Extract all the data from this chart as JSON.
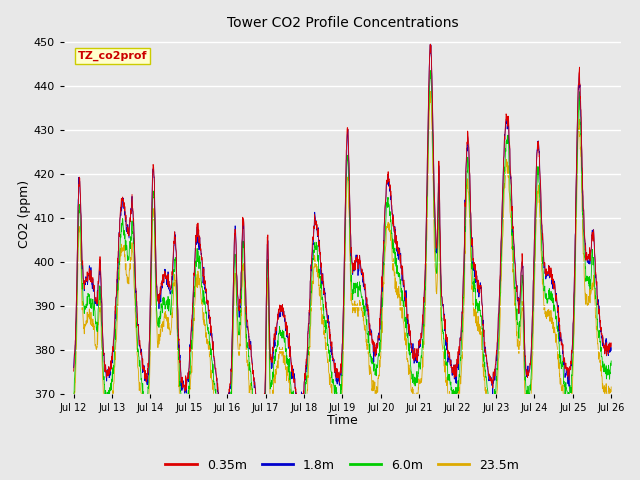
{
  "title": "Tower CO2 Profile Concentrations",
  "xlabel": "Time",
  "ylabel": "CO2 (ppm)",
  "ylim": [
    370,
    452
  ],
  "yticks": [
    370,
    380,
    390,
    400,
    410,
    420,
    430,
    440,
    450
  ],
  "annotation_text": "TZ_co2prof",
  "annotation_color": "#cc0000",
  "annotation_bg": "#ffffcc",
  "annotation_border": "#cccc00",
  "legend_entries": [
    "0.35m",
    "1.8m",
    "6.0m",
    "23.5m"
  ],
  "line_colors": [
    "#dd0000",
    "#0000cc",
    "#00cc00",
    "#ddaa00"
  ],
  "background_color": "#e8e8e8",
  "plot_bg": "#e8e8e8",
  "x_start_day": 11.75,
  "x_end_day": 26.25,
  "xtick_labels": [
    "Jul 12",
    "Jul 13",
    "Jul 14",
    "Jul 15",
    "Jul 16",
    "Jul 17",
    "Jul 18",
    "Jul 19",
    "Jul 20",
    "Jul 21",
    "Jul 22",
    "Jul 23",
    "Jul 24",
    "Jul 25",
    "Jul 26"
  ],
  "xtick_positions": [
    12,
    13,
    14,
    15,
    16,
    17,
    18,
    19,
    20,
    21,
    22,
    23,
    24,
    25,
    26
  ],
  "n_points": 2016,
  "seed": 42
}
